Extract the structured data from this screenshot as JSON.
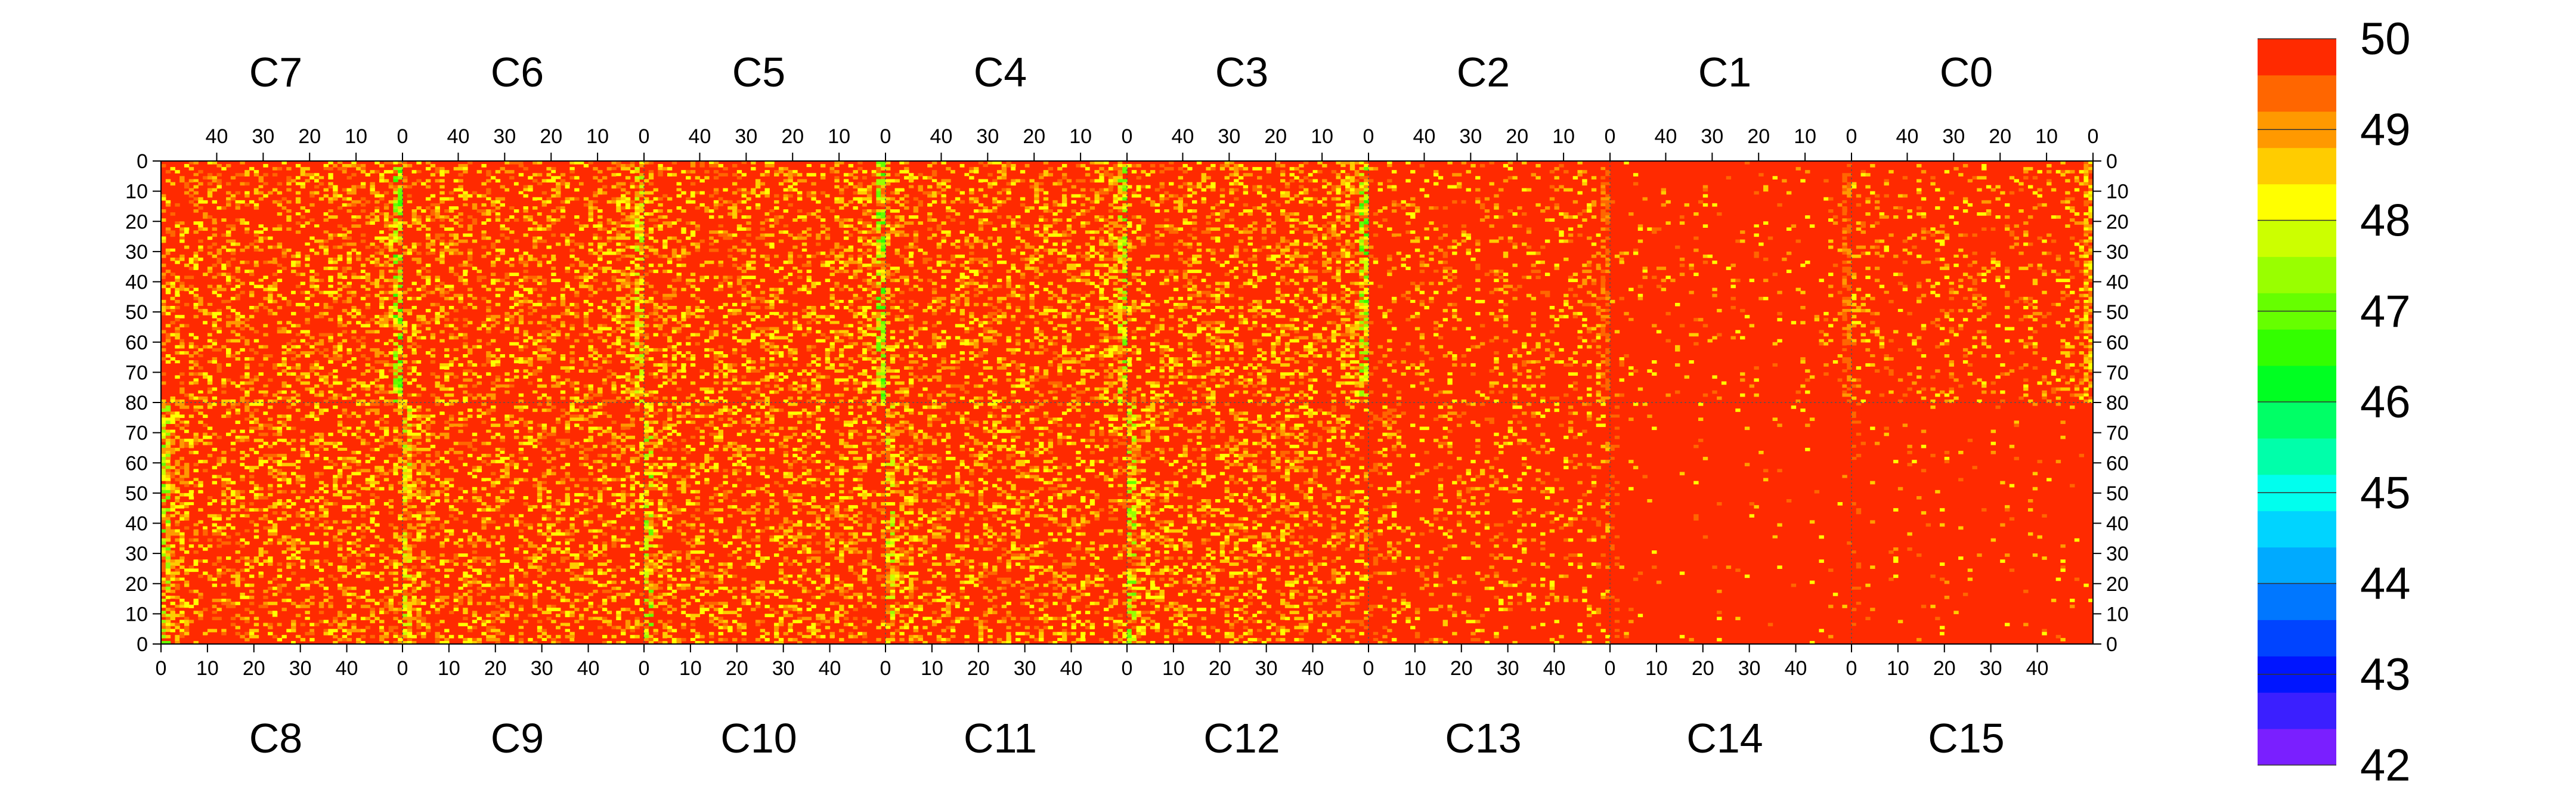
{
  "chart_data": {
    "type": "heatmap",
    "title": "",
    "top_chip_labels": [
      "C7",
      "C6",
      "C5",
      "C4",
      "C3",
      "C2",
      "C1",
      "C0"
    ],
    "bottom_chip_labels": [
      "C8",
      "C9",
      "C10",
      "C11",
      "C12",
      "C13",
      "C14",
      "C15"
    ],
    "columns_per_chip": 52,
    "rows_per_half": 80,
    "x_ticks_top": [
      40,
      30,
      20,
      10,
      0
    ],
    "x_ticks_bottom": [
      0,
      10,
      20,
      30,
      40
    ],
    "y_ticks_top_half": [
      0,
      10,
      20,
      30,
      40,
      50,
      60,
      70,
      80
    ],
    "y_ticks_bottom_half": [
      70,
      60,
      50,
      40,
      30,
      20,
      10,
      0
    ],
    "color_scale": {
      "min": 42,
      "max": 50,
      "ticks": [
        50,
        49,
        48,
        47,
        46,
        45,
        44,
        43,
        42
      ],
      "colors": [
        "#7a1fff",
        "#3b1fff",
        "#0015ff",
        "#0044ff",
        "#0077ff",
        "#00aaff",
        "#00d4ff",
        "#00ffee",
        "#00ffaa",
        "#00ff66",
        "#00ff22",
        "#33ff00",
        "#66ff00",
        "#99ff00",
        "#ccff00",
        "#ffff00",
        "#ffcc00",
        "#ff9900",
        "#ff6600",
        "#ff2a00"
      ]
    },
    "background_value": 50,
    "chip_profiles": {
      "C7": {
        "noise": "high",
        "edge_column_min": 46.5
      },
      "C6": {
        "noise": "high",
        "edge_column_min": 47.5
      },
      "C5": {
        "noise": "high",
        "edge_column_min": 46.5
      },
      "C4": {
        "noise": "high",
        "edge_column_min": 47
      },
      "C3": {
        "noise": "high",
        "edge_column_min": 46.5
      },
      "C2": {
        "noise": "medium",
        "edge_column_min": 49
      },
      "C1": {
        "noise": "low",
        "edge_column_min": 49
      },
      "C0": {
        "noise": "medium",
        "edge_column_min": 48
      },
      "C8": {
        "noise": "high",
        "edge_column_min": 47
      },
      "C9": {
        "noise": "high",
        "edge_column_min": 47.5
      },
      "C10": {
        "noise": "high",
        "edge_column_min": 47
      },
      "C11": {
        "noise": "high",
        "edge_column_min": 47.5
      },
      "C12": {
        "noise": "high",
        "edge_column_min": 47
      },
      "C13": {
        "noise": "medium",
        "edge_column_min": 49.5
      },
      "C14": {
        "noise": "very-low",
        "edge_column_min": 49.5
      },
      "C15": {
        "noise": "very-low",
        "edge_column_min": 49.5
      }
    }
  }
}
